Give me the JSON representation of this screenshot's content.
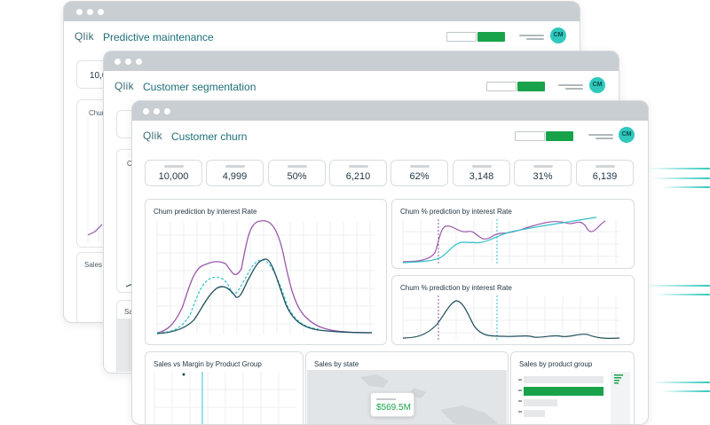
{
  "logo": "Qlik",
  "colors": {
    "accent_green": "#18a24a",
    "avatar_teal": "#2fc8bd",
    "line_purple": "#9a58a8",
    "line_dark": "#1f4f5c",
    "line_teal": "#2fc0c8"
  },
  "back_window": {
    "title": "Predictive maintenance",
    "avatar": "CM",
    "kpi_partial": "10,0",
    "chart_partial": "Chur",
    "sales_partial": "Sales"
  },
  "mid_window": {
    "title": "Customer segmentation",
    "avatar": "CM",
    "panel_partial_1": "Chu",
    "panel_partial_2": "C",
    "sales_partial": "Sa"
  },
  "front_window": {
    "title": "Customer churn",
    "avatar": "CM",
    "kpis": [
      "10,000",
      "4,999",
      "50%",
      "6,210",
      "62%",
      "3,148",
      "31%",
      "6,139"
    ],
    "panels": {
      "main_chart": "Chum prediction by interest Rate",
      "churn_pct_top": "Chum % prediction by interest Rate",
      "churn_pct_bottom": "Chum % prediction by interest Rate",
      "sales_margin": "Sales vs Margin by Product Group",
      "sales_state": "Sales by state",
      "sales_product": "Sales by product group"
    },
    "map_tooltip_value": "$569.5M"
  },
  "icons": [
    "window-dot-icon",
    "hamburger-icon",
    "map-icon"
  ]
}
